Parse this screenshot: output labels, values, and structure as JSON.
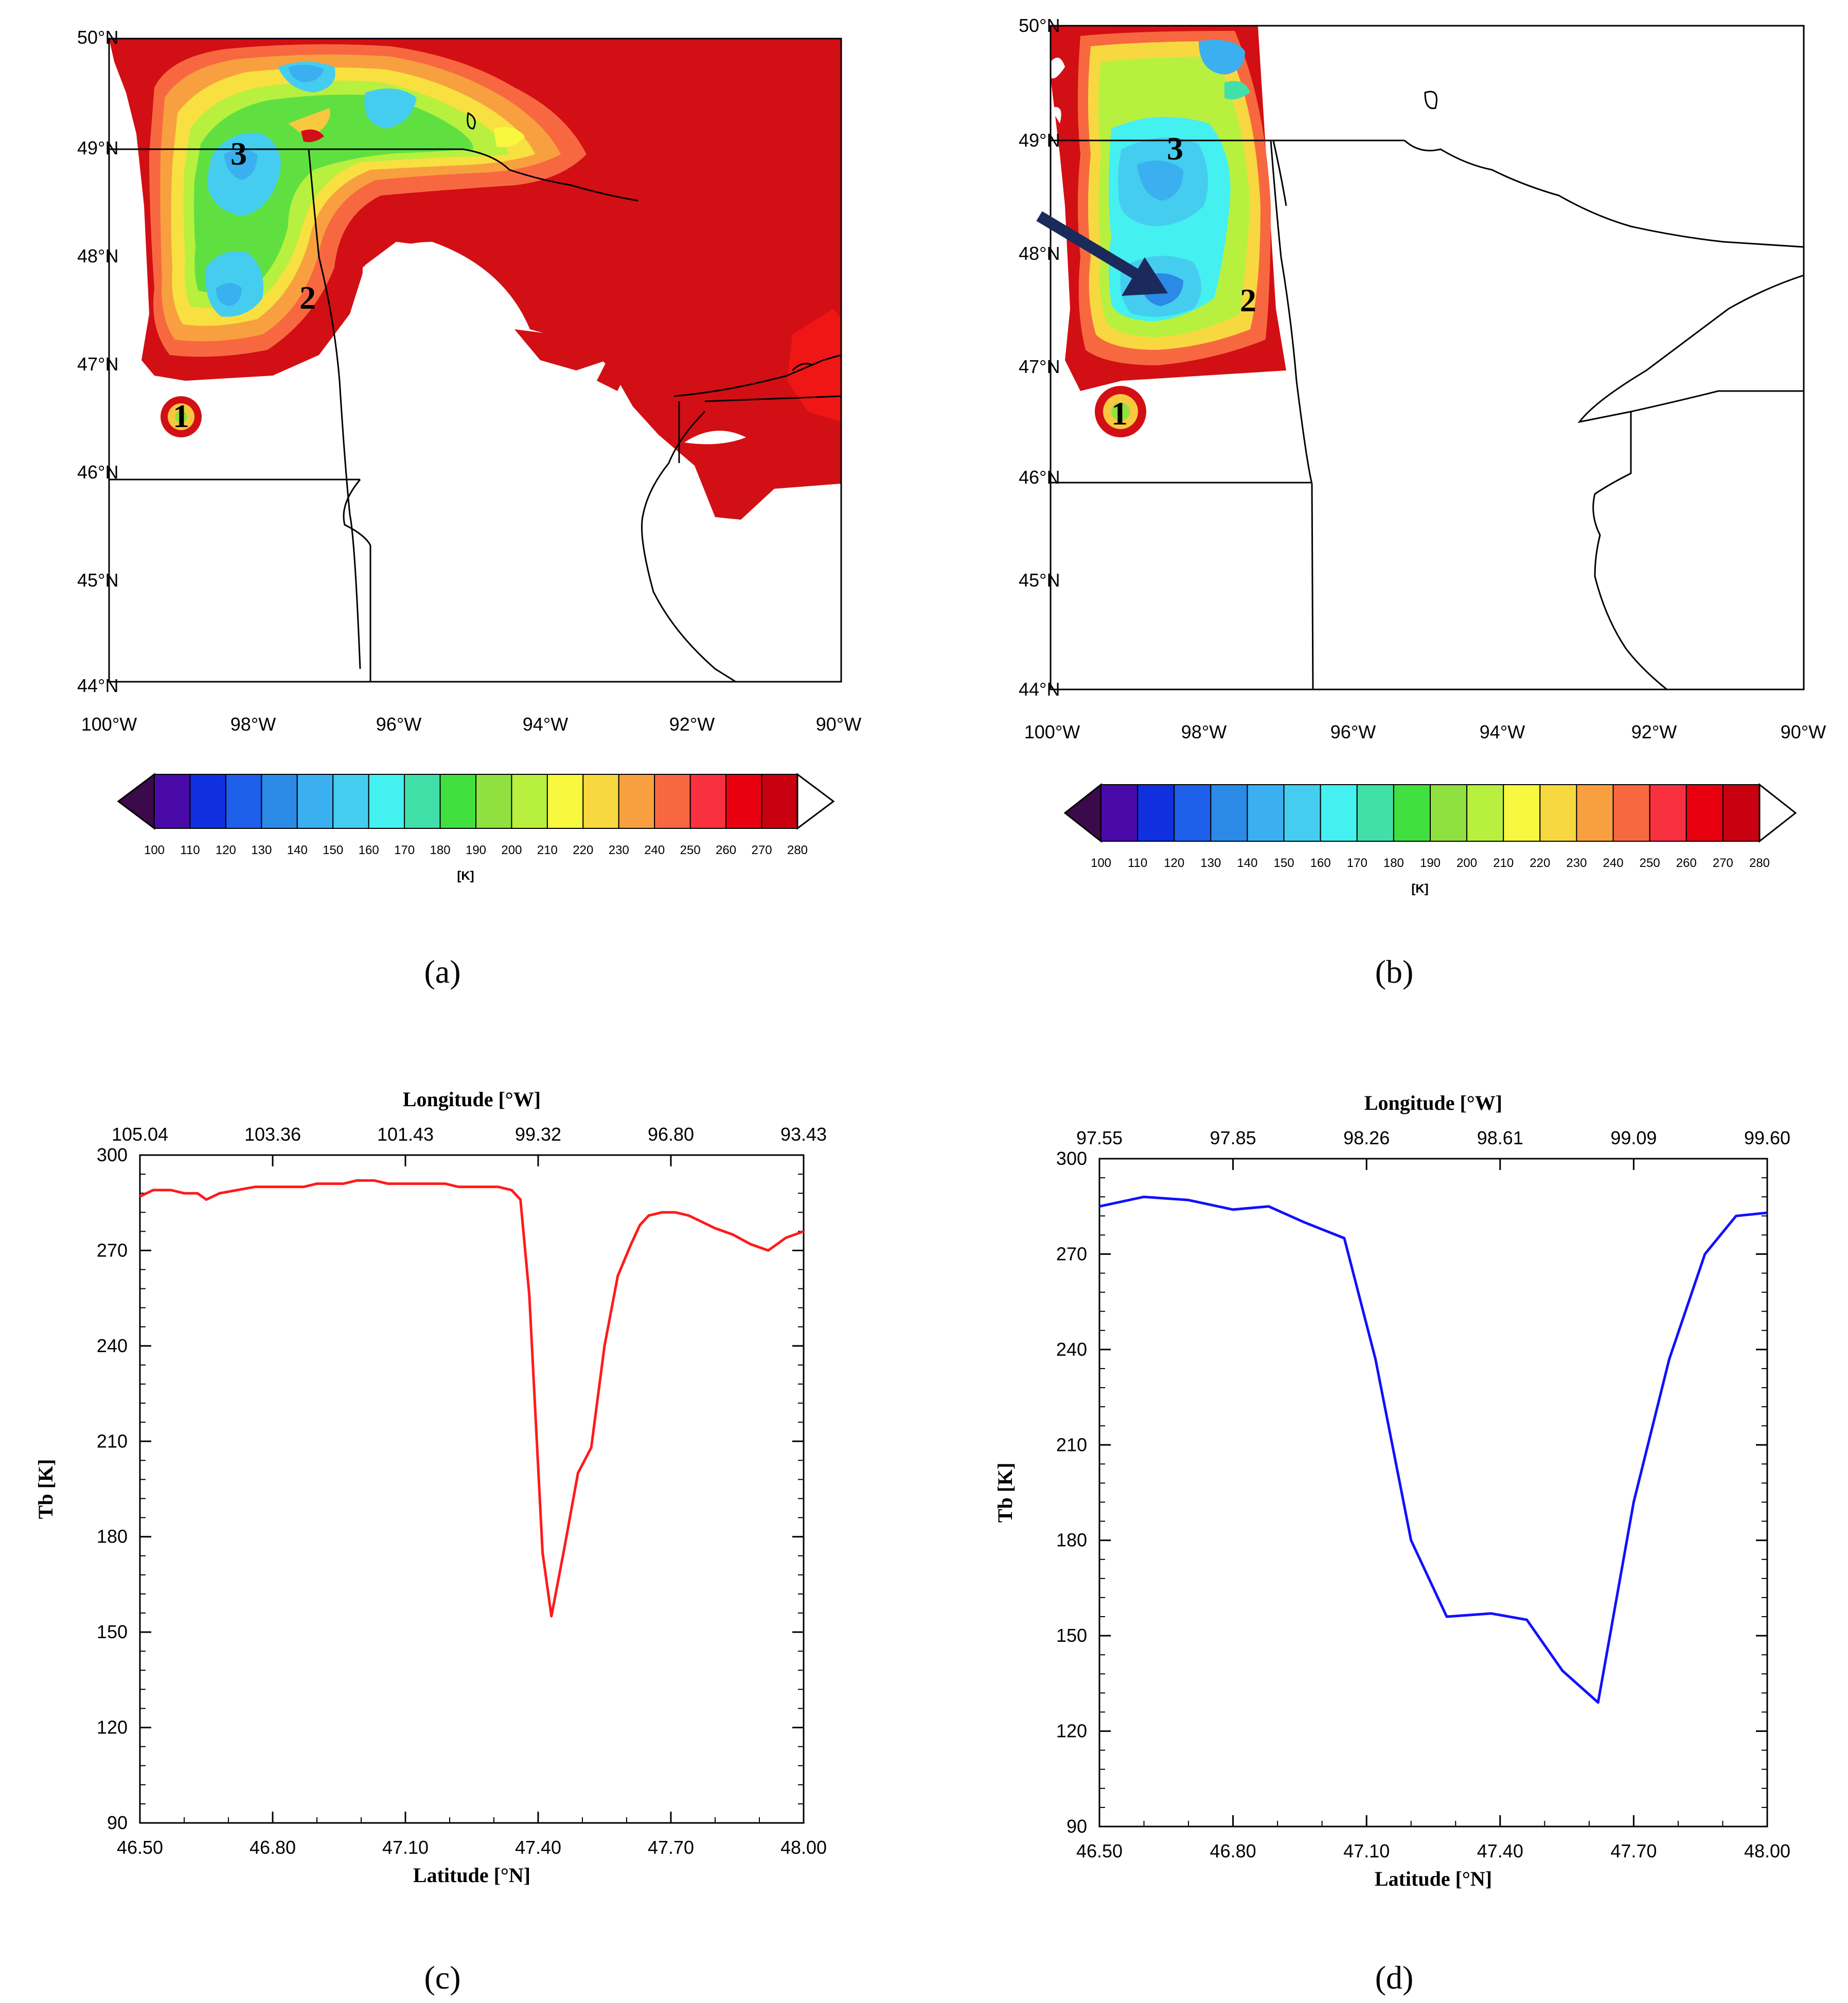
{
  "panels": {
    "a": {
      "label": "(a)"
    },
    "b": {
      "label": "(b)"
    },
    "c": {
      "label": "(c)"
    },
    "d": {
      "label": "(d)"
    }
  },
  "maps": {
    "lat_labels": [
      "50°N",
      "49°N",
      "48°N",
      "47°N",
      "46°N",
      "45°N",
      "44°N"
    ],
    "lon_labels": [
      "100°W",
      "98°W",
      "96°W",
      "94°W",
      "92°W",
      "90°W"
    ],
    "storm_labels": [
      "1",
      "2",
      "3"
    ]
  },
  "colorbar": {
    "unit": "[K]",
    "ticks": [
      "100",
      "110",
      "120",
      "130",
      "140",
      "150",
      "160",
      "170",
      "180",
      "190",
      "200",
      "210",
      "220",
      "230",
      "240",
      "250",
      "260",
      "270",
      "280"
    ],
    "colors": [
      "#3a0a4a",
      "#4a0aa8",
      "#1030e0",
      "#1e60ea",
      "#2a8ae6",
      "#3ab0f0",
      "#45cdf0",
      "#45f0f0",
      "#40e0a8",
      "#40e040",
      "#90e040",
      "#b8f040",
      "#f8f840",
      "#f8d840",
      "#f8a040",
      "#f86840",
      "#f83040",
      "#e80010",
      "#c80010"
    ]
  },
  "chart_data": [
    {
      "panel": "c",
      "type": "line",
      "title": "",
      "xlabel": "Latitude [°N]",
      "ylabel": "Tb [K]",
      "top_xlabel": "Longitude [°W]",
      "color": "#ff1a1a",
      "xlim": [
        46.5,
        48.0
      ],
      "ylim": [
        90,
        300
      ],
      "x_ticks": [
        "46.50",
        "46.80",
        "47.10",
        "47.40",
        "47.70",
        "48.00"
      ],
      "y_ticks": [
        "90",
        "120",
        "150",
        "180",
        "210",
        "240",
        "270",
        "300"
      ],
      "top_ticks": [
        "105.04",
        "103.36",
        "101.43",
        "99.32",
        "96.80",
        "93.43"
      ],
      "x": [
        46.5,
        46.53,
        46.57,
        46.6,
        46.63,
        46.65,
        46.68,
        46.72,
        46.76,
        46.8,
        46.83,
        46.87,
        46.9,
        46.93,
        46.96,
        46.99,
        47.0,
        47.03,
        47.06,
        47.1,
        47.13,
        47.16,
        47.19,
        47.22,
        47.25,
        47.28,
        47.31,
        47.34,
        47.36,
        47.38,
        47.39,
        47.41,
        47.43,
        47.46,
        47.49,
        47.52,
        47.55,
        47.58,
        47.61,
        47.63,
        47.65,
        47.68,
        47.71,
        47.74,
        47.77,
        47.8,
        47.84,
        47.88,
        47.92,
        47.96,
        48.0
      ],
      "y": [
        287,
        289,
        289,
        288,
        288,
        286,
        288,
        289,
        290,
        290,
        290,
        290,
        291,
        291,
        291,
        292,
        292,
        292,
        291,
        291,
        291,
        291,
        291,
        290,
        290,
        290,
        290,
        289,
        286,
        256,
        229,
        175,
        155,
        177,
        200,
        208,
        240,
        262,
        272,
        278,
        281,
        282,
        282,
        281,
        279,
        277,
        275,
        272,
        270,
        274,
        276
      ]
    },
    {
      "panel": "d",
      "type": "line",
      "title": "",
      "xlabel": "Latitude [°N]",
      "ylabel": "Tb [K]",
      "top_xlabel": "Longitude [°W]",
      "color": "#1010ff",
      "xlim": [
        46.5,
        48.0
      ],
      "ylim": [
        90,
        300
      ],
      "x_ticks": [
        "46.50",
        "46.80",
        "47.10",
        "47.40",
        "47.70",
        "48.00"
      ],
      "y_ticks": [
        "90",
        "120",
        "150",
        "180",
        "210",
        "240",
        "270",
        "300"
      ],
      "top_ticks": [
        "97.55",
        "97.85",
        "98.26",
        "98.61",
        "99.09",
        "99.60"
      ],
      "x": [
        46.5,
        46.6,
        46.7,
        46.8,
        46.88,
        46.96,
        47.05,
        47.12,
        47.2,
        47.28,
        47.38,
        47.46,
        47.54,
        47.62,
        47.7,
        47.78,
        47.86,
        47.93,
        48.0
      ],
      "y": [
        285,
        288,
        287,
        284,
        285,
        280,
        275,
        237,
        180,
        156,
        157,
        155,
        139,
        129,
        192,
        237,
        270,
        282,
        283
      ]
    }
  ]
}
